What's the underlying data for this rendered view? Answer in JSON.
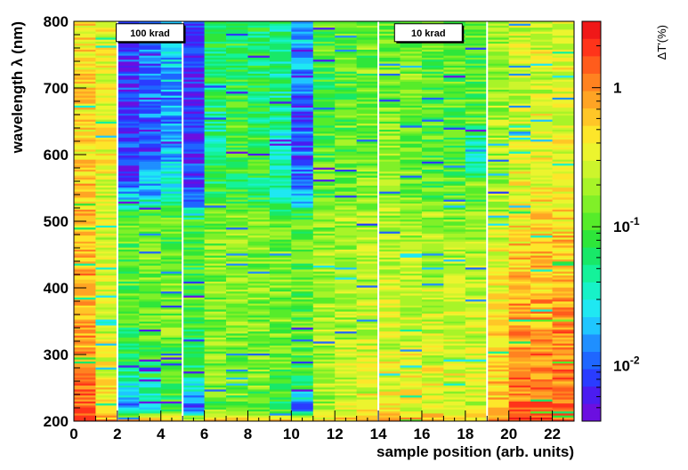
{
  "chart_data": {
    "type": "heatmap",
    "xlabel": "sample position (arb. units)",
    "ylabel": "wavelength λ (nm)",
    "zlabel": "ΔT'(%)",
    "xlim": [
      0,
      23
    ],
    "ylim": [
      200,
      800
    ],
    "x_ticks": [
      0,
      2,
      4,
      6,
      8,
      10,
      12,
      14,
      16,
      18,
      20,
      22
    ],
    "y_ticks": [
      200,
      300,
      400,
      500,
      600,
      700,
      800
    ],
    "z_scale": "log",
    "zlim": [
      0.004,
      3
    ],
    "z_tick_values": [
      0.01,
      0.1,
      1
    ],
    "z_tick_labels": [
      {
        "base": "10",
        "exp": "-2"
      },
      {
        "base": "10",
        "exp": "-1"
      },
      {
        "base": "1",
        "exp": ""
      }
    ],
    "colormap": [
      "#6b0fe0",
      "#4b1cf0",
      "#2a3cff",
      "#1f66ff",
      "#1f8fff",
      "#1fc6ff",
      "#1fe8f2",
      "#17f2c8",
      "#14f29a",
      "#18e868",
      "#2ee63a",
      "#56ec2a",
      "#80f028",
      "#a8f428",
      "#cdf52c",
      "#ecf42e",
      "#fde62a",
      "#ffc627",
      "#ffa424",
      "#ff8220",
      "#ff5c1c",
      "#ff341a",
      "#f01818"
    ],
    "separators_x": [
      2.0,
      5.0,
      14.0,
      19.0
    ],
    "annotations": [
      {
        "text": "100 krad",
        "x": 3.5,
        "y": 783
      },
      {
        "text": "10 krad",
        "x": 16.3,
        "y": 783
      }
    ],
    "n_columns": 23,
    "wavelength_bins_nm": [
      200,
      220,
      250,
      300,
      350,
      400,
      450,
      500,
      520,
      540,
      560,
      600,
      650,
      690,
      740,
      800
    ],
    "column_profiles_dT_percent": [
      {
        "col": 0,
        "values": [
          1.6,
          1.4,
          1.1,
          0.9,
          0.8,
          0.7,
          0.7,
          0.6,
          0.6,
          0.6,
          0.6,
          0.5,
          0.5,
          0.5,
          0.5,
          0.5
        ]
      },
      {
        "col": 1,
        "values": [
          0.9,
          0.5,
          0.4,
          0.3,
          0.3,
          0.3,
          0.3,
          0.25,
          0.25,
          0.25,
          0.3,
          0.35,
          0.4,
          0.4,
          0.4,
          0.4
        ]
      },
      {
        "col": 2,
        "values": [
          0.8,
          0.012,
          0.03,
          0.08,
          0.09,
          0.1,
          0.12,
          0.12,
          0.05,
          0.02,
          0.01,
          0.008,
          0.007,
          0.007,
          0.008,
          0.01
        ]
      },
      {
        "col": 3,
        "values": [
          0.9,
          0.02,
          0.05,
          0.1,
          0.12,
          0.12,
          0.13,
          0.12,
          0.06,
          0.02,
          0.02,
          0.01,
          0.01,
          0.012,
          0.012,
          0.015
        ]
      },
      {
        "col": 4,
        "values": [
          0.7,
          0.06,
          0.1,
          0.12,
          0.14,
          0.13,
          0.13,
          0.12,
          0.08,
          0.03,
          0.03,
          0.02,
          0.015,
          0.015,
          0.02,
          0.02
        ]
      },
      {
        "col": 5,
        "values": [
          0.5,
          0.008,
          0.03,
          0.09,
          0.09,
          0.1,
          0.1,
          0.09,
          0.02,
          0.01,
          0.008,
          0.007,
          0.007,
          0.007,
          0.007,
          0.01
        ]
      },
      {
        "col": 6,
        "values": [
          0.7,
          0.1,
          0.12,
          0.14,
          0.14,
          0.15,
          0.15,
          0.14,
          0.12,
          0.08,
          0.06,
          0.05,
          0.05,
          0.06,
          0.06,
          0.06
        ]
      },
      {
        "col": 7,
        "values": [
          0.7,
          0.12,
          0.14,
          0.15,
          0.16,
          0.16,
          0.16,
          0.15,
          0.12,
          0.08,
          0.09,
          0.1,
          0.1,
          0.08,
          0.08,
          0.08
        ]
      },
      {
        "col": 8,
        "values": [
          0.6,
          0.1,
          0.13,
          0.15,
          0.15,
          0.15,
          0.15,
          0.14,
          0.1,
          0.06,
          0.07,
          0.09,
          0.07,
          0.06,
          0.06,
          0.06
        ]
      },
      {
        "col": 9,
        "values": [
          0.6,
          0.05,
          0.1,
          0.13,
          0.14,
          0.14,
          0.14,
          0.13,
          0.08,
          0.04,
          0.04,
          0.04,
          0.04,
          0.05,
          0.05,
          0.05
        ]
      },
      {
        "col": 10,
        "values": [
          0.5,
          0.01,
          0.06,
          0.1,
          0.12,
          0.12,
          0.12,
          0.11,
          0.04,
          0.015,
          0.012,
          0.01,
          0.01,
          0.012,
          0.015,
          0.02
        ]
      },
      {
        "col": 11,
        "values": [
          0.6,
          0.2,
          0.2,
          0.2,
          0.18,
          0.18,
          0.17,
          0.16,
          0.14,
          0.1,
          0.11,
          0.12,
          0.1,
          0.09,
          0.1,
          0.1
        ]
      },
      {
        "col": 12,
        "values": [
          0.7,
          0.25,
          0.25,
          0.24,
          0.22,
          0.2,
          0.19,
          0.18,
          0.16,
          0.13,
          0.13,
          0.13,
          0.12,
          0.12,
          0.12,
          0.12
        ]
      },
      {
        "col": 13,
        "values": [
          0.7,
          0.3,
          0.3,
          0.28,
          0.24,
          0.22,
          0.2,
          0.19,
          0.17,
          0.15,
          0.15,
          0.15,
          0.14,
          0.13,
          0.13,
          0.13
        ]
      },
      {
        "col": 14,
        "values": [
          0.8,
          0.35,
          0.35,
          0.32,
          0.28,
          0.25,
          0.22,
          0.2,
          0.18,
          0.16,
          0.16,
          0.16,
          0.15,
          0.14,
          0.14,
          0.14
        ]
      },
      {
        "col": 15,
        "values": [
          0.8,
          0.35,
          0.35,
          0.32,
          0.28,
          0.25,
          0.22,
          0.2,
          0.18,
          0.14,
          0.14,
          0.12,
          0.12,
          0.13,
          0.14,
          0.14
        ]
      },
      {
        "col": 16,
        "values": [
          0.8,
          0.32,
          0.32,
          0.3,
          0.26,
          0.24,
          0.21,
          0.19,
          0.16,
          0.12,
          0.12,
          0.1,
          0.1,
          0.12,
          0.12,
          0.12
        ]
      },
      {
        "col": 17,
        "values": [
          0.8,
          0.3,
          0.3,
          0.28,
          0.25,
          0.22,
          0.2,
          0.18,
          0.15,
          0.12,
          0.12,
          0.08,
          0.1,
          0.1,
          0.11,
          0.11
        ]
      },
      {
        "col": 18,
        "values": [
          0.8,
          0.3,
          0.3,
          0.28,
          0.25,
          0.22,
          0.2,
          0.18,
          0.15,
          0.12,
          0.12,
          0.02,
          0.1,
          0.1,
          0.11,
          0.11
        ]
      },
      {
        "col": 19,
        "values": [
          1.1,
          0.6,
          0.55,
          0.5,
          0.42,
          0.36,
          0.3,
          0.26,
          0.22,
          0.2,
          0.2,
          0.2,
          0.2,
          0.2,
          0.2,
          0.2
        ]
      },
      {
        "col": 20,
        "values": [
          1.5,
          1.2,
          1.1,
          0.95,
          0.8,
          0.65,
          0.55,
          0.45,
          0.38,
          0.32,
          0.3,
          0.28,
          0.27,
          0.27,
          0.27,
          0.27
        ]
      },
      {
        "col": 21,
        "values": [
          1.6,
          1.3,
          1.2,
          1.05,
          0.9,
          0.7,
          0.6,
          0.5,
          0.42,
          0.36,
          0.34,
          0.32,
          0.3,
          0.3,
          0.3,
          0.3
        ]
      },
      {
        "col": 22,
        "values": [
          1.6,
          1.3,
          1.2,
          1.05,
          0.9,
          0.7,
          0.6,
          0.5,
          0.42,
          0.38,
          0.35,
          0.33,
          0.32,
          0.32,
          0.32,
          0.32
        ]
      }
    ],
    "grid": false,
    "legend": "colorbar-right"
  }
}
